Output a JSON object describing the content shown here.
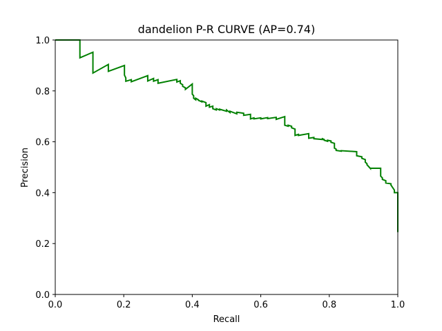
{
  "chart_data": {
    "type": "line",
    "title": "dandelion P-R CURVE (AP=0.74)",
    "xlabel": "Recall",
    "ylabel": "Precision",
    "xlim": [
      0,
      1
    ],
    "ylim": [
      0,
      1
    ],
    "x_ticks": [
      "0.0",
      "0.2",
      "0.4",
      "0.6",
      "0.8",
      "1.0"
    ],
    "y_ticks": [
      "0.0",
      "0.2",
      "0.4",
      "0.6",
      "0.8",
      "1.0"
    ],
    "grid": false,
    "legend": "none",
    "series": [
      {
        "color": "#008000",
        "x": [
          0.0,
          0.072,
          0.072,
          0.11,
          0.11,
          0.155,
          0.155,
          0.202,
          0.202,
          0.206,
          0.206,
          0.222,
          0.222,
          0.27,
          0.27,
          0.287,
          0.287,
          0.3,
          0.3,
          0.355,
          0.355,
          0.365,
          0.365,
          0.372,
          0.372,
          0.38,
          0.38,
          0.4,
          0.4,
          0.404,
          0.404,
          0.41,
          0.41,
          0.418,
          0.418,
          0.428,
          0.428,
          0.44,
          0.44,
          0.45,
          0.45,
          0.46,
          0.46,
          0.47,
          0.47,
          0.48,
          0.48,
          0.5,
          0.5,
          0.51,
          0.51,
          0.53,
          0.53,
          0.55,
          0.55,
          0.57,
          0.57,
          0.58,
          0.58,
          0.6,
          0.6,
          0.62,
          0.62,
          0.645,
          0.645,
          0.67,
          0.67,
          0.68,
          0.68,
          0.69,
          0.69,
          0.7,
          0.7,
          0.71,
          0.71,
          0.74,
          0.74,
          0.755,
          0.755,
          0.78,
          0.78,
          0.785,
          0.785,
          0.795,
          0.795,
          0.805,
          0.805,
          0.815,
          0.815,
          0.82,
          0.82,
          0.835,
          0.835,
          0.88,
          0.88,
          0.895,
          0.895,
          0.905,
          0.905,
          0.91,
          0.91,
          0.92,
          0.92,
          0.95,
          0.95,
          0.955,
          0.955,
          0.965,
          0.965,
          0.98,
          0.98,
          0.99,
          0.99,
          1.0,
          1.0
        ],
        "y": [
          1.0,
          1.0,
          0.93,
          0.952,
          0.87,
          0.904,
          0.877,
          0.9,
          0.862,
          0.851,
          0.838,
          0.844,
          0.836,
          0.86,
          0.839,
          0.849,
          0.838,
          0.844,
          0.83,
          0.845,
          0.835,
          0.84,
          0.83,
          0.824,
          0.818,
          0.812,
          0.806,
          0.827,
          0.787,
          0.781,
          0.771,
          0.765,
          0.771,
          0.765,
          0.763,
          0.757,
          0.76,
          0.754,
          0.74,
          0.746,
          0.736,
          0.74,
          0.73,
          0.725,
          0.73,
          0.725,
          0.728,
          0.72,
          0.725,
          0.715,
          0.72,
          0.71,
          0.716,
          0.712,
          0.704,
          0.708,
          0.69,
          0.694,
          0.69,
          0.694,
          0.69,
          0.695,
          0.691,
          0.696,
          0.688,
          0.699,
          0.665,
          0.661,
          0.665,
          0.661,
          0.655,
          0.65,
          0.625,
          0.629,
          0.625,
          0.632,
          0.614,
          0.617,
          0.612,
          0.609,
          0.612,
          0.609,
          0.606,
          0.602,
          0.606,
          0.603,
          0.598,
          0.594,
          0.575,
          0.571,
          0.566,
          0.563,
          0.565,
          0.561,
          0.545,
          0.541,
          0.535,
          0.53,
          0.52,
          0.514,
          0.51,
          0.495,
          0.496,
          0.496,
          0.465,
          0.458,
          0.452,
          0.447,
          0.438,
          0.435,
          0.43,
          0.41,
          0.4,
          0.4,
          0.245
        ]
      }
    ]
  }
}
